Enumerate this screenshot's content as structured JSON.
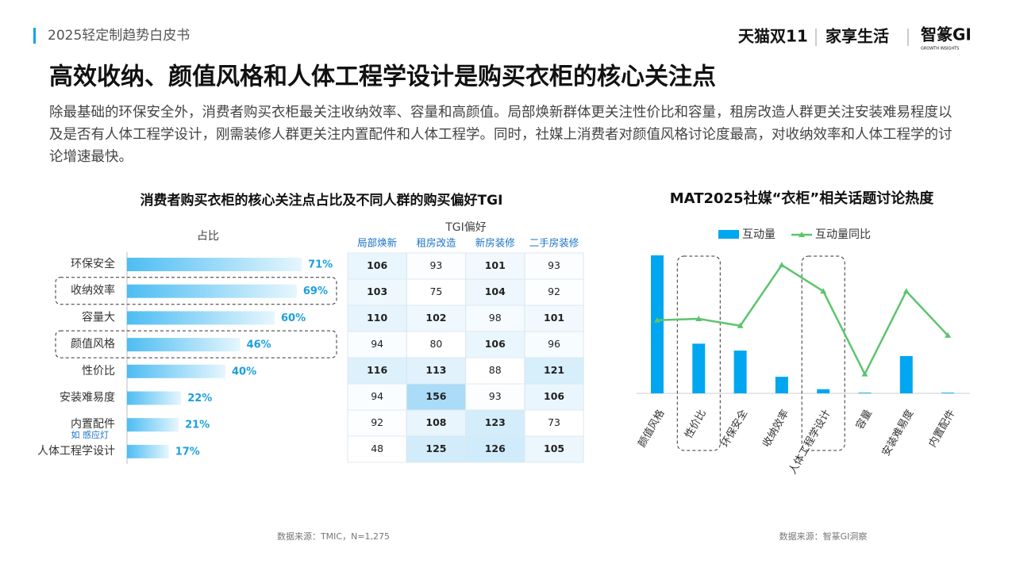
{
  "header": {
    "report": "2025轻定制趋势白皮书",
    "brands": [
      "天猫双11",
      "家享生活",
      "智篆GI"
    ],
    "brand_sub": "GROWTH INSIGHTS"
  },
  "title": "高效收纳、颜值风格和人体工程学设计是购买衣柜的核心关注点",
  "description": "除最基础的环保安全外，消费者购买衣柜最关注收纳效率、容量和高颜值。局部焕新群体更关注性价比和容量，租房改造人群更关注安装难易程度以及是否有人体工程学设计，刚需装修人群更关注内置配件和人体工程学。同时，社媒上消费者对颜值风格讨论度最高，对收纳效率和人体工程学的讨论增速最快。",
  "chart_data": [
    {
      "type": "hbar",
      "title": "消费者购买衣柜的核心关注点占比及不同人群的购买偏好TGI",
      "axis_label": "占比",
      "categories": [
        "环保安全",
        "收纳效率",
        "容量大",
        "颜值风格",
        "性价比",
        "安装难易度",
        "内置配件",
        "人体工程学设计"
      ],
      "values": [
        71,
        69,
        60,
        46,
        40,
        22,
        21,
        17
      ],
      "value_labels": [
        "71%",
        "69%",
        "60%",
        "46%",
        "40%",
        "22%",
        "21%",
        "17%"
      ],
      "annotation": "如 感应灯",
      "highlighted": [
        false,
        true,
        false,
        true,
        false,
        false,
        false,
        false
      ],
      "xlim": [
        0,
        100
      ],
      "color": "#4dbdf3",
      "tgi": {
        "title": "TGI偏好",
        "columns": [
          "局部焕新",
          "租房改造",
          "新房装修",
          "二手房装修"
        ],
        "rows": [
          [
            106,
            93,
            101,
            93
          ],
          [
            103,
            75,
            104,
            92
          ],
          [
            110,
            102,
            98,
            101
          ],
          [
            94,
            80,
            106,
            96
          ],
          [
            116,
            113,
            88,
            121
          ],
          [
            94,
            156,
            93,
            106
          ],
          [
            92,
            108,
            123,
            73
          ],
          [
            48,
            125,
            126,
            105
          ]
        ]
      },
      "source": "数据来源：TMIC，N=1,275"
    },
    {
      "type": "bar_line",
      "title": "MAT2025社媒“衣柜”相关话题讨论热度",
      "categories": [
        "颜值风格",
        "性价比",
        "环保安全",
        "收纳效率",
        "人体工程学设计",
        "容量",
        "安装难易度",
        "内置配件"
      ],
      "highlighted": [
        false,
        true,
        false,
        false,
        true,
        false,
        false,
        false
      ],
      "series": [
        {
          "name": "互动量",
          "color": "#00a6f0",
          "values": [
            100,
            36,
            31,
            12,
            3,
            0.5,
            27,
            0.5
          ]
        },
        {
          "name": "互动量同比",
          "color": "#5cc46e",
          "axis": "y2",
          "values": [
            53,
            54,
            49,
            93,
            74,
            14,
            74,
            42
          ]
        }
      ],
      "ylim": [
        0,
        100
      ],
      "y2lim": [
        0,
        100
      ],
      "source": "数据来源：智篆GI洞察"
    }
  ]
}
